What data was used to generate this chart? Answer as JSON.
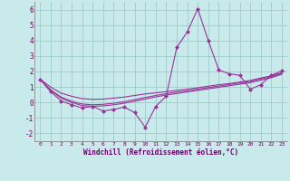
{
  "x": [
    0,
    1,
    2,
    3,
    4,
    5,
    6,
    7,
    8,
    9,
    10,
    11,
    12,
    13,
    14,
    15,
    16,
    17,
    18,
    19,
    20,
    21,
    22,
    23
  ],
  "y_main": [
    1.5,
    0.7,
    0.1,
    -0.15,
    -0.35,
    -0.25,
    -0.55,
    -0.45,
    -0.3,
    -0.65,
    -1.6,
    -0.25,
    0.4,
    3.55,
    4.55,
    6.05,
    4.0,
    2.1,
    1.85,
    1.75,
    0.85,
    1.15,
    1.75,
    2.05
  ],
  "y_line1": [
    1.5,
    1.0,
    0.6,
    0.4,
    0.25,
    0.2,
    0.22,
    0.28,
    0.35,
    0.45,
    0.55,
    0.62,
    0.7,
    0.78,
    0.86,
    0.95,
    1.05,
    1.15,
    1.22,
    1.32,
    1.42,
    1.58,
    1.72,
    1.92
  ],
  "y_line2": [
    1.5,
    0.82,
    0.35,
    0.08,
    -0.1,
    -0.15,
    -0.12,
    -0.05,
    0.05,
    0.18,
    0.32,
    0.45,
    0.57,
    0.67,
    0.76,
    0.86,
    0.96,
    1.06,
    1.16,
    1.26,
    1.36,
    1.52,
    1.67,
    1.88
  ],
  "y_line3": [
    1.5,
    0.78,
    0.28,
    0.0,
    -0.2,
    -0.25,
    -0.22,
    -0.15,
    -0.05,
    0.08,
    0.22,
    0.36,
    0.48,
    0.58,
    0.68,
    0.78,
    0.88,
    0.98,
    1.08,
    1.18,
    1.28,
    1.44,
    1.6,
    1.82
  ],
  "line_color": "#993399",
  "bg_color": "#c8eaea",
  "grid_color": "#b0d8d8",
  "xlabel": "Windchill (Refroidissement éolien,°C)",
  "xlim": [
    -0.5,
    23.5
  ],
  "ylim": [
    -2.5,
    6.5
  ],
  "yticks": [
    -2,
    -1,
    0,
    1,
    2,
    3,
    4,
    5,
    6
  ],
  "xticks": [
    0,
    1,
    2,
    3,
    4,
    5,
    6,
    7,
    8,
    9,
    10,
    11,
    12,
    13,
    14,
    15,
    16,
    17,
    18,
    19,
    20,
    21,
    22,
    23
  ]
}
